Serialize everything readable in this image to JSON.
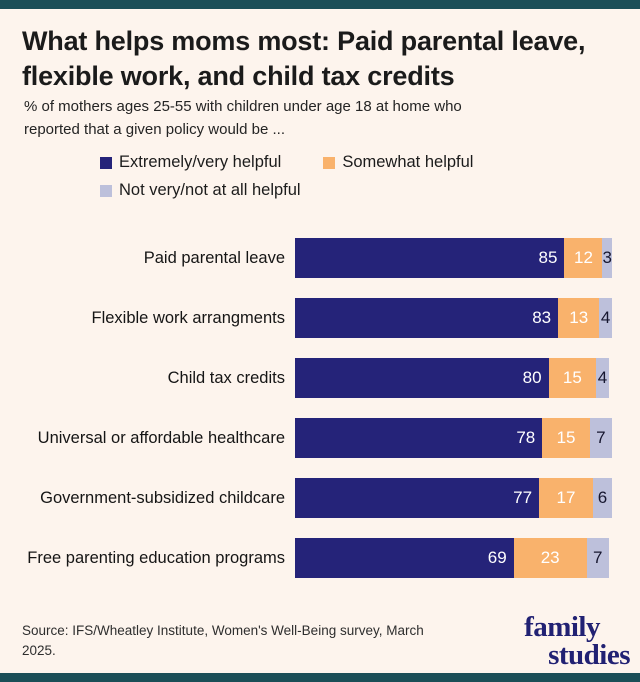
{
  "frame": {
    "accent_color": "#1b4e57"
  },
  "header": {
    "title": "What helps moms most: Paid parental leave, flexible work, and child tax credits",
    "subtitle": "% of mothers ages 25-55 with children under age 18 at home who reported that a given policy would be ..."
  },
  "legend": {
    "items": [
      {
        "label": "Extremely/very helpful",
        "color": "#252379"
      },
      {
        "label": "Somewhat helpful",
        "color": "#f9b26c"
      },
      {
        "label": "Not very/not at all helpful",
        "color": "#bdc0db"
      }
    ]
  },
  "chart_data": {
    "type": "bar",
    "orientation": "horizontal",
    "stacked": true,
    "value_unit": "percent",
    "xlim": [
      0,
      100
    ],
    "grid": false,
    "legend_position": "top",
    "categories": [
      "Paid parental leave",
      "Flexible work arrangments",
      "Child tax credits",
      "Universal or affordable healthcare",
      "Government-subsidized childcare",
      "Free parenting education programs"
    ],
    "series": [
      {
        "key": "extremely-very-helpful",
        "name": "Extremely/very helpful",
        "color": "#252379",
        "label_color": "#ffffff",
        "values": [
          85,
          83,
          80,
          78,
          77,
          69
        ]
      },
      {
        "key": "somewhat-helpful",
        "name": "Somewhat helpful",
        "color": "#f9b26c",
        "label_color": "#ffffff",
        "values": [
          12,
          13,
          15,
          15,
          17,
          23
        ]
      },
      {
        "key": "not-very-not-at-all-helpful",
        "name": "Not very/not at all helpful",
        "color": "#bdc0db",
        "label_color": "#16162f",
        "values": [
          3,
          4,
          4,
          7,
          6,
          7
        ]
      }
    ]
  },
  "footer": {
    "source": "Source: IFS/Wheatley Institute, Women's Well-Being survey, March 2025.",
    "logo_line1": "family",
    "logo_line2": "studies",
    "logo_color": "#212173"
  }
}
